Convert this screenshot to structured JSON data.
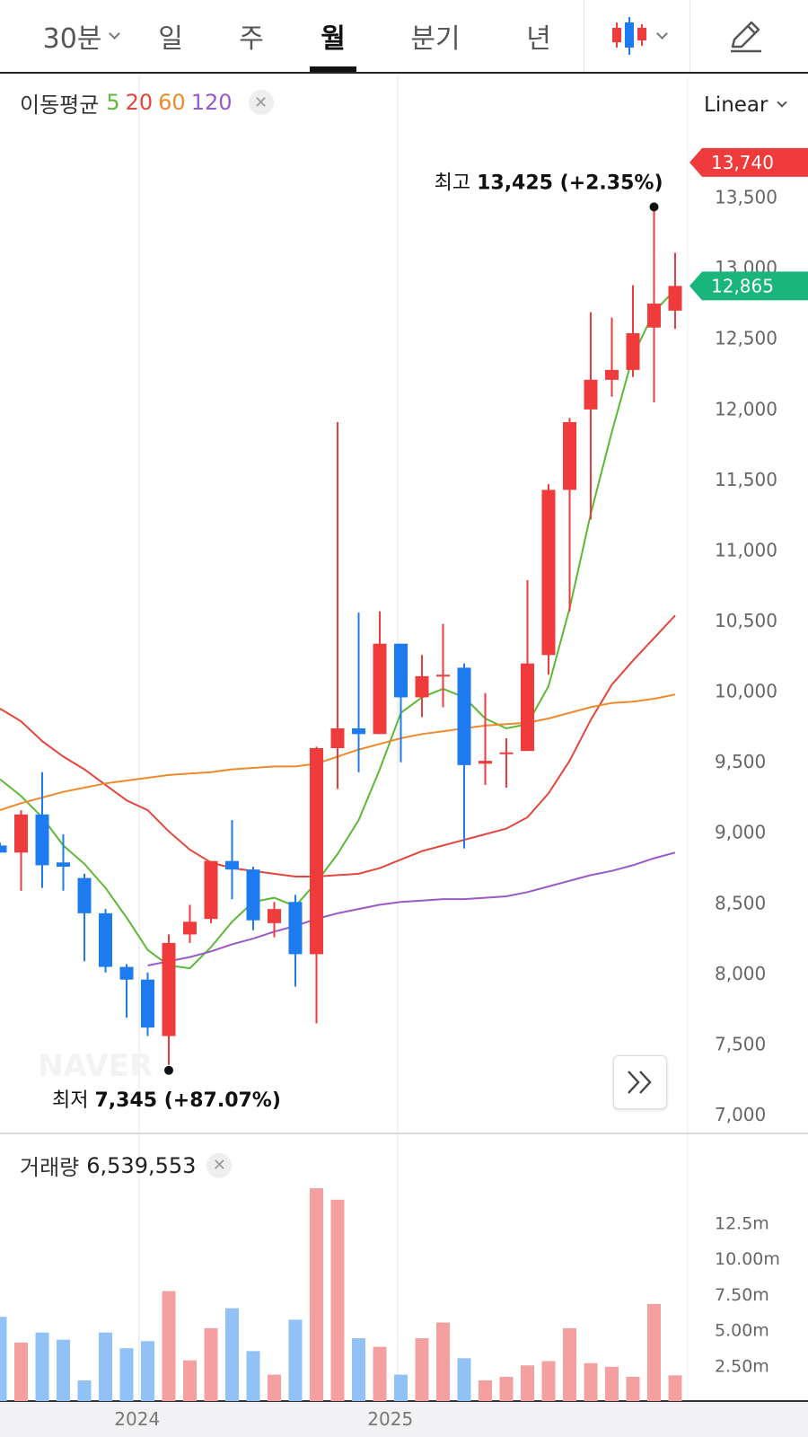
{
  "tabs": [
    {
      "label": "30분",
      "active": false,
      "has_caret": true
    },
    {
      "label": "일",
      "active": false
    },
    {
      "label": "주",
      "active": false
    },
    {
      "label": "월",
      "active": true
    },
    {
      "label": "분기",
      "active": false
    },
    {
      "label": "년",
      "active": false
    }
  ],
  "toolbar": {
    "chart_type_icon": "candlestick-icon",
    "edit_icon": "pencil-icon"
  },
  "ma_legend": {
    "label": "이동평균",
    "periods": [
      {
        "value": "5",
        "color": "#5cb935"
      },
      {
        "value": "20",
        "color": "#e2463c"
      },
      {
        "value": "60",
        "color": "#ee8a2a"
      },
      {
        "value": "120",
        "color": "#9b59c8"
      }
    ]
  },
  "scale_select": {
    "value": "Linear"
  },
  "price_axis": {
    "ticks": [
      "13,500",
      "13,000",
      "12,500",
      "12,000",
      "11,500",
      "11,000",
      "10,500",
      "10,000",
      "9,500",
      "9,000",
      "8,500",
      "8,000",
      "7,500",
      "7,000"
    ],
    "tick_values": [
      13500,
      13000,
      12500,
      12000,
      11500,
      11000,
      10500,
      10000,
      9500,
      9000,
      8500,
      8000,
      7500,
      7000
    ],
    "marker_high": {
      "label": "13,740",
      "value": 13740,
      "color": "#ef3b3b"
    },
    "marker_current": {
      "label": "12,865",
      "value": 12865,
      "color": "#19b57a"
    }
  },
  "annotations": {
    "high": {
      "label": "최고",
      "text": "13,425 (+2.35%)",
      "value": 13425
    },
    "low": {
      "label": "최저",
      "text": "7,345 (+87.07%)",
      "value": 7345
    }
  },
  "volume_legend": {
    "label": "거래량",
    "value": "6,539,553"
  },
  "volume_axis": {
    "ticks": [
      "12.5m",
      "10.00m",
      "7.50m",
      "5.00m",
      "2.50m"
    ],
    "tick_values": [
      12.5,
      10,
      7.5,
      5,
      2.5
    ]
  },
  "x_axis": {
    "labels": [
      {
        "text": "2024",
        "index": 6.5
      },
      {
        "text": "2025",
        "index": 18.5
      }
    ]
  },
  "watermark": "NAVER",
  "colors": {
    "up": "#ef3b3b",
    "down": "#1d7bef",
    "up_volume": "#f4a0a0",
    "down_volume": "#92c2f5"
  },
  "chart_data": {
    "type": "candlestick",
    "period": "월",
    "candles": [
      {
        "o": 8900,
        "h": 8920,
        "l": 8850,
        "c": 8850
      },
      {
        "o": 8850,
        "h": 9150,
        "l": 8580,
        "c": 9120
      },
      {
        "o": 9120,
        "h": 9420,
        "l": 8600,
        "c": 8760
      },
      {
        "o": 8780,
        "h": 8980,
        "l": 8580,
        "c": 8750
      },
      {
        "o": 8670,
        "h": 8700,
        "l": 8080,
        "c": 8420
      },
      {
        "o": 8420,
        "h": 8450,
        "l": 8000,
        "c": 8040
      },
      {
        "o": 8040,
        "h": 8060,
        "l": 7680,
        "c": 7950
      },
      {
        "o": 7950,
        "h": 8000,
        "l": 7550,
        "c": 7610
      },
      {
        "o": 7550,
        "h": 8270,
        "l": 7345,
        "c": 8210
      },
      {
        "o": 8270,
        "h": 8480,
        "l": 8210,
        "c": 8360
      },
      {
        "o": 8380,
        "h": 8790,
        "l": 8350,
        "c": 8790
      },
      {
        "o": 8790,
        "h": 9080,
        "l": 8520,
        "c": 8730
      },
      {
        "o": 8730,
        "h": 8750,
        "l": 8300,
        "c": 8370
      },
      {
        "o": 8350,
        "h": 8500,
        "l": 8250,
        "c": 8450
      },
      {
        "o": 8500,
        "h": 8550,
        "l": 7900,
        "c": 8130
      },
      {
        "o": 8130,
        "h": 9600,
        "l": 7640,
        "c": 9590
      },
      {
        "o": 9590,
        "h": 11900,
        "l": 9300,
        "c": 9730
      },
      {
        "o": 9730,
        "h": 10550,
        "l": 9420,
        "c": 9690
      },
      {
        "o": 9690,
        "h": 10560,
        "l": 9690,
        "c": 10330
      },
      {
        "o": 10330,
        "h": 10330,
        "l": 9490,
        "c": 9950
      },
      {
        "o": 9950,
        "h": 10250,
        "l": 9810,
        "c": 10100
      },
      {
        "o": 10100,
        "h": 10470,
        "l": 9880,
        "c": 10110
      },
      {
        "o": 10160,
        "h": 10190,
        "l": 8880,
        "c": 9470
      },
      {
        "o": 9480,
        "h": 9980,
        "l": 9330,
        "c": 9500
      },
      {
        "o": 9560,
        "h": 9660,
        "l": 9310,
        "c": 9560
      },
      {
        "o": 9570,
        "h": 10780,
        "l": 9570,
        "c": 10190
      },
      {
        "o": 10250,
        "h": 11460,
        "l": 10110,
        "c": 11420
      },
      {
        "o": 11420,
        "h": 11930,
        "l": 10560,
        "c": 11900
      },
      {
        "o": 11990,
        "h": 12680,
        "l": 11210,
        "c": 12200
      },
      {
        "o": 12200,
        "h": 12640,
        "l": 12080,
        "c": 12270
      },
      {
        "o": 12270,
        "h": 12870,
        "l": 12220,
        "c": 12530
      },
      {
        "o": 12570,
        "h": 13425,
        "l": 12040,
        "c": 12740
      },
      {
        "o": 12690,
        "h": 13100,
        "l": 12560,
        "c": 12865
      }
    ],
    "volume_millions": [
      5.9,
      4.1,
      4.8,
      4.3,
      1.45,
      4.8,
      3.7,
      4.2,
      7.7,
      2.85,
      5.1,
      6.5,
      3.5,
      1.85,
      5.7,
      14.9,
      14.1,
      4.4,
      3.8,
      1.85,
      4.4,
      5.5,
      3.0,
      1.45,
      1.7,
      2.5,
      2.8,
      5.1,
      2.65,
      2.4,
      1.7,
      6.8,
      1.8
    ],
    "moving_averages": [
      {
        "name": "5",
        "start": 0,
        "values": [
          9370,
          9250,
          9100,
          8900,
          8770,
          8600,
          8390,
          8160,
          8050,
          8030,
          8180,
          8360,
          8500,
          8530,
          8470,
          8640,
          8840,
          9080,
          9440,
          9840,
          9950,
          10010,
          9950,
          9800,
          9730,
          9760,
          10030,
          10580,
          11250,
          11830,
          12370,
          12680,
          12840
        ]
      },
      {
        "name": "20",
        "start": 0,
        "values": [
          9870,
          9780,
          9640,
          9530,
          9440,
          9330,
          9220,
          9150,
          9000,
          8870,
          8780,
          8740,
          8720,
          8700,
          8680,
          8680,
          8690,
          8700,
          8740,
          8800,
          8860,
          8900,
          8940,
          8980,
          9020,
          9100,
          9270,
          9500,
          9790,
          10040,
          10210,
          10370,
          10530
        ]
      },
      {
        "name": "60",
        "start": 0,
        "values": [
          9150,
          9200,
          9240,
          9280,
          9310,
          9340,
          9360,
          9380,
          9400,
          9410,
          9420,
          9440,
          9450,
          9460,
          9460,
          9480,
          9530,
          9580,
          9620,
          9660,
          9690,
          9710,
          9730,
          9750,
          9760,
          9770,
          9800,
          9840,
          9880,
          9910,
          9920,
          9940,
          9970
        ]
      },
      {
        "name": "120",
        "start": 7,
        "values": [
          8050,
          8080,
          8110,
          8150,
          8200,
          8240,
          8290,
          8330,
          8380,
          8420,
          8450,
          8480,
          8500,
          8510,
          8520,
          8520,
          8530,
          8540,
          8570,
          8610,
          8650,
          8690,
          8720,
          8760,
          8810,
          8850
        ]
      }
    ],
    "ylim": [
      7000,
      13740
    ],
    "volume_ylim": [
      0,
      14.9
    ]
  }
}
